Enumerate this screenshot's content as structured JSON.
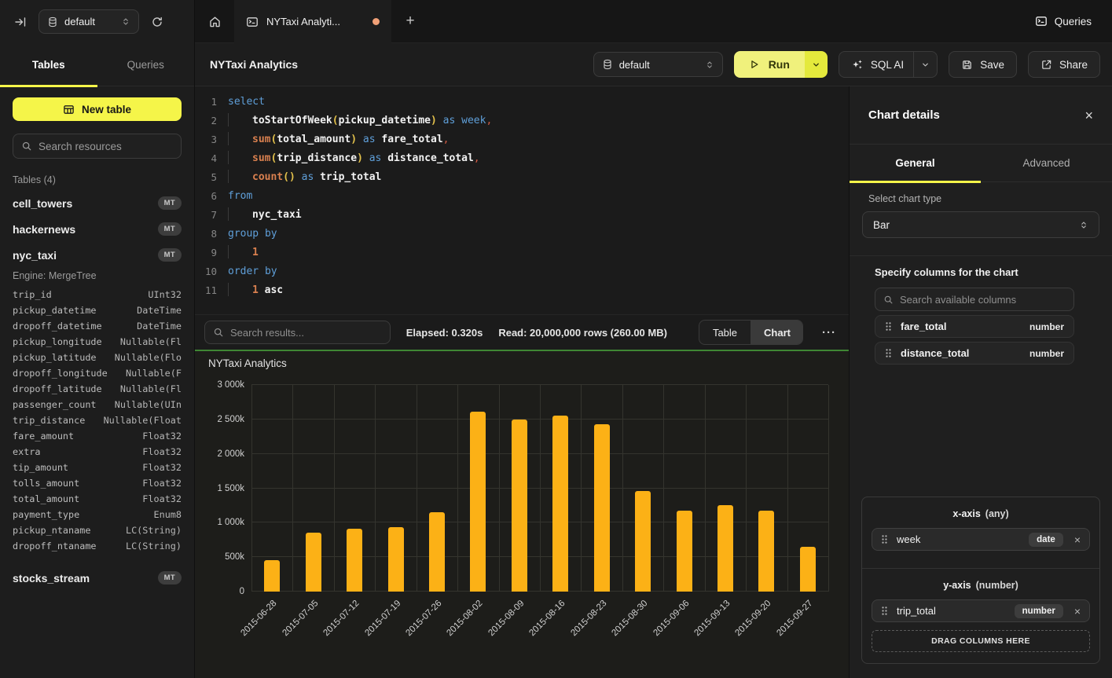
{
  "colors": {
    "accent": "#F5F549",
    "bar": "#FCB116",
    "divider_green": "#3F8734",
    "tab_dot": "#F0A077",
    "code_keyword": "#5F9FD9",
    "code_function": "#D9804F",
    "code_paren": "#E3C14B",
    "code_comma": "#D05A43",
    "code_identifier": "#F2F2F2"
  },
  "icons": {
    "more_options": "···",
    "add_tab": "+",
    "close": "×",
    "chip_remove": "×"
  },
  "topbar": {
    "database": "default",
    "tab_label": "NYTaxi Analyti...",
    "queries_label": "Queries"
  },
  "sidebar": {
    "tabs": [
      "Tables",
      "Queries"
    ],
    "new_table_label": "New table",
    "search_placeholder": "Search resources",
    "section_label": "Tables (4)",
    "tables": [
      {
        "name": "cell_towers",
        "badge": "MT"
      },
      {
        "name": "hackernews",
        "badge": "MT"
      },
      {
        "name": "nyc_taxi",
        "badge": "MT",
        "engine": "Engine: MergeTree",
        "columns": [
          [
            "trip_id",
            "UInt32"
          ],
          [
            "pickup_datetime",
            "DateTime"
          ],
          [
            "dropoff_datetime",
            "DateTime"
          ],
          [
            "pickup_longitude",
            "Nullable(Fl"
          ],
          [
            "pickup_latitude",
            "Nullable(Flo"
          ],
          [
            "dropoff_longitude",
            "Nullable(F"
          ],
          [
            "dropoff_latitude",
            "Nullable(Fl"
          ],
          [
            "passenger_count",
            "Nullable(UIn"
          ],
          [
            "trip_distance",
            "Nullable(Float"
          ],
          [
            "fare_amount",
            "Float32"
          ],
          [
            "extra",
            "Float32"
          ],
          [
            "tip_amount",
            "Float32"
          ],
          [
            "tolls_amount",
            "Float32"
          ],
          [
            "total_amount",
            "Float32"
          ],
          [
            "payment_type",
            "Enum8"
          ],
          [
            "pickup_ntaname",
            "LC(String)"
          ],
          [
            "dropoff_ntaname",
            "LC(String)"
          ]
        ]
      },
      {
        "name": "stocks_stream",
        "badge": "MT"
      }
    ]
  },
  "toolbar": {
    "title": "NYTaxi Analytics",
    "database": "default",
    "run_label": "Run",
    "sql_ai_label": "SQL AI",
    "save_label": "Save",
    "share_label": "Share"
  },
  "editor": {
    "lines": [
      [
        [
          "kw",
          "select"
        ]
      ],
      [
        [
          "ind",
          ""
        ],
        [
          "id",
          "toStartOfWeek"
        ],
        [
          "par",
          "("
        ],
        [
          "id",
          "pickup_datetime"
        ],
        [
          "par",
          ")"
        ],
        [
          "pl",
          " "
        ],
        [
          "kw",
          "as"
        ],
        [
          "pl",
          " "
        ],
        [
          "kw",
          "week"
        ],
        [
          "comma",
          ","
        ]
      ],
      [
        [
          "ind",
          ""
        ],
        [
          "fn",
          "sum"
        ],
        [
          "par",
          "("
        ],
        [
          "id",
          "total_amount"
        ],
        [
          "par",
          ")"
        ],
        [
          "pl",
          " "
        ],
        [
          "kw",
          "as"
        ],
        [
          "pl",
          " "
        ],
        [
          "id",
          "fare_total"
        ],
        [
          "comma",
          ","
        ]
      ],
      [
        [
          "ind",
          ""
        ],
        [
          "fn",
          "sum"
        ],
        [
          "par",
          "("
        ],
        [
          "id",
          "trip_distance"
        ],
        [
          "par",
          ")"
        ],
        [
          "pl",
          " "
        ],
        [
          "kw",
          "as"
        ],
        [
          "pl",
          " "
        ],
        [
          "id",
          "distance_total"
        ],
        [
          "comma",
          ","
        ]
      ],
      [
        [
          "ind",
          ""
        ],
        [
          "fn",
          "count"
        ],
        [
          "par",
          "()"
        ],
        [
          "pl",
          " "
        ],
        [
          "kw",
          "as"
        ],
        [
          "pl",
          " "
        ],
        [
          "id",
          "trip_total"
        ]
      ],
      [
        [
          "kw",
          "from"
        ]
      ],
      [
        [
          "ind",
          ""
        ],
        [
          "id",
          "nyc_taxi"
        ]
      ],
      [
        [
          "kw",
          "group by"
        ]
      ],
      [
        [
          "ind",
          ""
        ],
        [
          "num",
          "1"
        ]
      ],
      [
        [
          "kw",
          "order by"
        ]
      ],
      [
        [
          "ind",
          ""
        ],
        [
          "num",
          "1"
        ],
        [
          "pl",
          " "
        ],
        [
          "id",
          "asc"
        ]
      ]
    ]
  },
  "results_bar": {
    "search_placeholder": "Search results...",
    "elapsed": "Elapsed: 0.320s",
    "read": "Read: 20,000,000 rows (260.00 MB)",
    "toggle": [
      "Table",
      "Chart"
    ],
    "active_toggle": "Chart"
  },
  "chart_data": {
    "type": "bar",
    "title": "NYTaxi Analytics",
    "x": [
      "2015-06-28",
      "2015-07-05",
      "2015-07-12",
      "2015-07-19",
      "2015-07-26",
      "2015-08-02",
      "2015-08-09",
      "2015-08-16",
      "2015-08-23",
      "2015-08-30",
      "2015-09-06",
      "2015-09-13",
      "2015-09-20",
      "2015-09-27"
    ],
    "series": [
      {
        "name": "trip_total",
        "values": [
          460000,
          860000,
          910000,
          930000,
          1150000,
          2610000,
          2500000,
          2550000,
          2430000,
          1460000,
          1170000,
          1260000,
          1170000,
          650000
        ]
      }
    ],
    "ylim": [
      0,
      3000000
    ],
    "ytick_labels": [
      "0",
      "500k",
      "1 000k",
      "1 500k",
      "2 000k",
      "2 500k",
      "3 000k"
    ],
    "grid": true,
    "legend": false,
    "bar_color": "#FCB116"
  },
  "chart_panel": {
    "title": "Chart details",
    "tabs": [
      "General",
      "Advanced"
    ],
    "active_tab": "General",
    "chart_type_label": "Select chart type",
    "chart_type_value": "Bar",
    "columns_label": "Specify columns for the chart",
    "search_placeholder": "Search available columns",
    "available_columns": [
      {
        "name": "fare_total",
        "type": "number"
      },
      {
        "name": "distance_total",
        "type": "number"
      }
    ],
    "x_axis": {
      "label": "x-axis",
      "hint": "(any)",
      "chip": {
        "name": "week",
        "type": "date"
      }
    },
    "y_axis": {
      "label": "y-axis",
      "hint": "(number)",
      "chip": {
        "name": "trip_total",
        "type": "number"
      }
    },
    "drop_label": "DRAG COLUMNS HERE"
  }
}
